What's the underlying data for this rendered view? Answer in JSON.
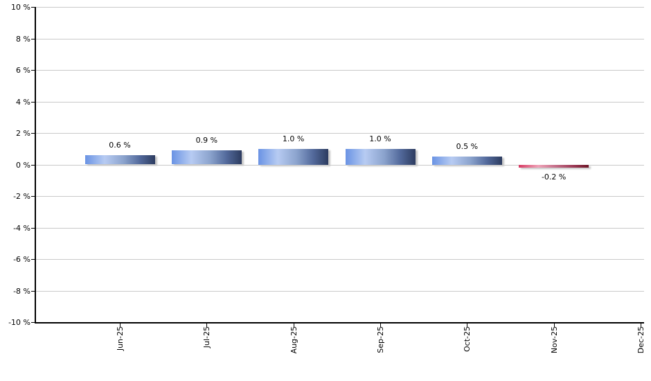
{
  "chart_data": {
    "type": "bar",
    "title": "",
    "xlabel": "",
    "ylabel": "",
    "categories": [
      "Jun-25",
      "Jul-25",
      "Aug-25",
      "Sep-25",
      "Oct-25",
      "Nov-25",
      "Dec-25"
    ],
    "values": [
      0.6,
      0.9,
      1.0,
      1.0,
      0.5,
      -0.2,
      null
    ],
    "value_labels": [
      "0.6 %",
      "0.9 %",
      "1.0 %",
      "1.0 %",
      "0.5 %",
      "-0.2 %",
      ""
    ],
    "ylim": [
      -10,
      10
    ],
    "ytick_step": 2,
    "ytick_labels": [
      "10 %",
      "8 %",
      "6 %",
      "4 %",
      "2 %",
      "0 %",
      "-2 %",
      "-4 %",
      "-6 %",
      "-8 %",
      "-10 %"
    ],
    "grid": true,
    "legend": "none",
    "colors": {
      "positive_gradient": [
        "#6a93e4",
        "#b7cbf2",
        "#8ba3cd",
        "#536a9c",
        "#2d3c60"
      ],
      "negative_gradient": [
        "#d63a62",
        "#efa3b8",
        "#c06a84",
        "#9c3a55",
        "#6d1627"
      ],
      "gridline": "#c9c9c9",
      "axis": "#000000",
      "text": "#000000",
      "background": "#ffffff"
    }
  }
}
